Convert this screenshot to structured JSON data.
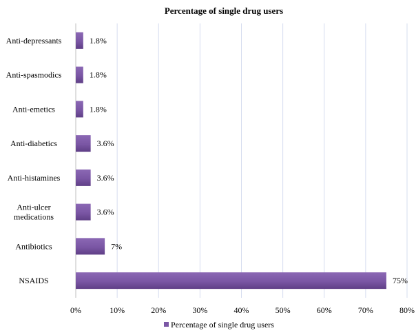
{
  "chart_data": {
    "type": "bar",
    "orientation": "horizontal",
    "title": "Percentage of single drug users",
    "xlabel": "",
    "ylabel": "",
    "categories": [
      "Anti-depressants",
      "Anti-spasmodics",
      "Anti-emetics",
      "Anti-diabetics",
      "Anti-histamines",
      "Anti-ulcer medications",
      "Antibiotics",
      "NSAIDS"
    ],
    "category_lines": [
      [
        "Anti-depressants"
      ],
      [
        "Anti-spasmodics"
      ],
      [
        "Anti-emetics"
      ],
      [
        "Anti-diabetics"
      ],
      [
        "Anti-histamines"
      ],
      [
        "Anti-ulcer",
        "medications"
      ],
      [
        "Antibiotics"
      ],
      [
        "NSAIDS"
      ]
    ],
    "series": [
      {
        "name": "Percentage of single drug users",
        "values": [
          1.8,
          1.8,
          1.8,
          3.6,
          3.6,
          3.6,
          7,
          75
        ],
        "labels": [
          "1.8%",
          "1.8%",
          "1.8%",
          "3.6%",
          "3.6%",
          "3.6%",
          "7%",
          "75%"
        ],
        "color": "#7b57a5"
      }
    ],
    "xlim": [
      0,
      80
    ],
    "x_ticks": [
      0,
      10,
      20,
      30,
      40,
      50,
      60,
      70,
      80
    ],
    "x_tick_labels": [
      "0%",
      "10%",
      "20%",
      "30%",
      "40%",
      "50%",
      "60%",
      "70%",
      "80%"
    ],
    "grid": true,
    "grid_color": "#d5dcef",
    "legend_position": "bottom"
  }
}
